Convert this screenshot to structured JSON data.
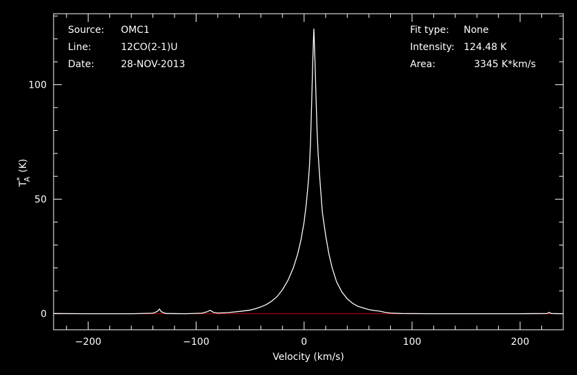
{
  "header_left": {
    "source_label": "Source:",
    "source_value": "OMC1",
    "line_label": "Line:",
    "line_value": "12CO(2-1)U",
    "date_label": "Date:",
    "date_value": "28-NOV-2013"
  },
  "header_right": {
    "fit_label": "Fit type:",
    "fit_value": "None",
    "intensity_label": "Intensity:",
    "intensity_value": "124.48 K",
    "area_label": "Area:",
    "area_value": "3345 K*km/s"
  },
  "chart_data": {
    "type": "line",
    "xlabel": "Velocity (km/s)",
    "ylabel_main": "T",
    "ylabel_sup": "*",
    "ylabel_sub": "A",
    "ylabel_unit": "(K)",
    "xlim": [
      -232,
      240
    ],
    "ylim": [
      -7,
      131
    ],
    "xticks_major": [
      -200,
      -100,
      0,
      100,
      200
    ],
    "xtick_labels": [
      "−200",
      "−100",
      "0",
      "100",
      "200"
    ],
    "yticks_major": [
      0,
      50,
      100
    ],
    "ytick_labels": [
      "0",
      "50",
      "100"
    ],
    "grid": false,
    "colors": {
      "background": "#000000",
      "spectrum": "#ffffff",
      "baseline": "#cc0000",
      "axes": "#ffffff"
    },
    "baseline_y": 0,
    "series": [
      {
        "points": [
          [
            -232,
            0.1
          ],
          [
            -200,
            0.0
          ],
          [
            -160,
            0.0
          ],
          [
            -140,
            0.2
          ],
          [
            -136,
            1.0
          ],
          [
            -134,
            2.0
          ],
          [
            -132,
            0.8
          ],
          [
            -128,
            0.1
          ],
          [
            -110,
            0.0
          ],
          [
            -95,
            0.2
          ],
          [
            -90,
            0.8
          ],
          [
            -87,
            1.5
          ],
          [
            -84,
            0.6
          ],
          [
            -80,
            0.3
          ],
          [
            -70,
            0.5
          ],
          [
            -60,
            1.0
          ],
          [
            -50,
            1.6
          ],
          [
            -45,
            2.2
          ],
          [
            -40,
            3.0
          ],
          [
            -35,
            4.0
          ],
          [
            -30,
            5.5
          ],
          [
            -25,
            7.5
          ],
          [
            -20,
            10.5
          ],
          [
            -15,
            14.5
          ],
          [
            -10,
            20.0
          ],
          [
            -6,
            26.0
          ],
          [
            -3,
            32.0
          ],
          [
            0,
            40.0
          ],
          [
            2,
            48.0
          ],
          [
            4,
            58.0
          ],
          [
            5,
            65.0
          ],
          [
            6,
            75.0
          ],
          [
            7,
            92.0
          ],
          [
            8,
            110.0
          ],
          [
            9,
            124.48
          ],
          [
            10,
            112.0
          ],
          [
            11,
            95.0
          ],
          [
            12,
            80.0
          ],
          [
            13,
            70.0
          ],
          [
            15,
            56.0
          ],
          [
            17,
            44.0
          ],
          [
            20,
            34.0
          ],
          [
            23,
            26.0
          ],
          [
            26,
            20.0
          ],
          [
            30,
            14.0
          ],
          [
            35,
            9.5
          ],
          [
            40,
            6.5
          ],
          [
            45,
            4.5
          ],
          [
            50,
            3.2
          ],
          [
            55,
            2.5
          ],
          [
            60,
            1.8
          ],
          [
            65,
            1.4
          ],
          [
            70,
            1.1
          ],
          [
            75,
            0.6
          ],
          [
            80,
            0.3
          ],
          [
            90,
            0.1
          ],
          [
            120,
            0.0
          ],
          [
            160,
            0.0
          ],
          [
            200,
            0.0
          ],
          [
            225,
            0.1
          ],
          [
            227,
            0.6
          ],
          [
            229,
            0.1
          ],
          [
            240,
            0.0
          ]
        ]
      }
    ]
  }
}
